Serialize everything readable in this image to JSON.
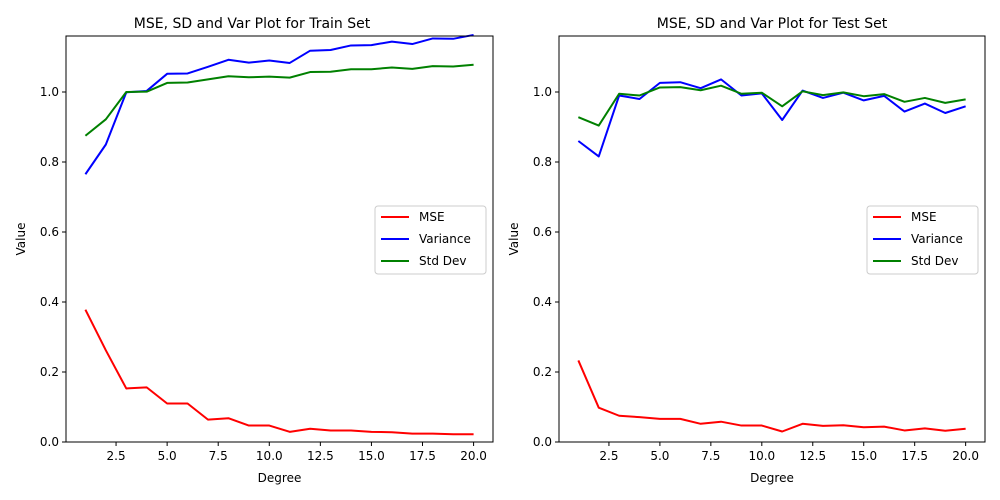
{
  "chart_data": [
    {
      "type": "line",
      "title": "MSE, SD and Var Plot for Train Set",
      "xlabel": "Degree",
      "ylabel": "Value",
      "xlim": [
        0.05,
        20.95
      ],
      "ylim": [
        0.0,
        1.16
      ],
      "xticks": [
        2.5,
        5.0,
        7.5,
        10.0,
        12.5,
        15.0,
        17.5,
        20.0
      ],
      "xtick_labels": [
        "2.5",
        "5.0",
        "7.5",
        "10.0",
        "12.5",
        "15.0",
        "17.5",
        "20.0"
      ],
      "yticks": [
        0.0,
        0.2,
        0.4,
        0.6,
        0.8,
        1.0
      ],
      "ytick_labels": [
        "0.0",
        "0.2",
        "0.4",
        "0.6",
        "0.8",
        "1.0"
      ],
      "legend_position": "center-right",
      "grid": false,
      "x": [
        1,
        2,
        3,
        4,
        5,
        6,
        7,
        8,
        9,
        10,
        11,
        12,
        13,
        14,
        15,
        16,
        17,
        18,
        19,
        20
      ],
      "series": [
        {
          "name": "MSE",
          "color": "#ff0000",
          "values": [
            0.378,
            0.262,
            0.153,
            0.156,
            0.11,
            0.11,
            0.064,
            0.068,
            0.047,
            0.047,
            0.029,
            0.038,
            0.033,
            0.033,
            0.029,
            0.028,
            0.024,
            0.024,
            0.022,
            0.022
          ]
        },
        {
          "name": "Variance",
          "color": "#0000ff",
          "values": [
            0.765,
            0.85,
            0.999,
            1.003,
            1.052,
            1.053,
            1.072,
            1.092,
            1.084,
            1.09,
            1.083,
            1.118,
            1.12,
            1.133,
            1.134,
            1.144,
            1.137,
            1.153,
            1.152,
            1.163
          ]
        },
        {
          "name": "Std Dev",
          "color": "#008000",
          "values": [
            0.875,
            0.922,
            1.0,
            1.001,
            1.026,
            1.027,
            1.036,
            1.045,
            1.042,
            1.044,
            1.041,
            1.057,
            1.058,
            1.065,
            1.065,
            1.07,
            1.066,
            1.074,
            1.073,
            1.078
          ]
        }
      ]
    },
    {
      "type": "line",
      "title": "MSE, SD and Var Plot for Test Set",
      "xlabel": "Degree",
      "ylabel": "Value",
      "xlim": [
        0.05,
        20.95
      ],
      "ylim": [
        0.0,
        1.16
      ],
      "xticks": [
        2.5,
        5.0,
        7.5,
        10.0,
        12.5,
        15.0,
        17.5,
        20.0
      ],
      "xtick_labels": [
        "2.5",
        "5.0",
        "7.5",
        "10.0",
        "12.5",
        "15.0",
        "17.5",
        "20.0"
      ],
      "yticks": [
        0.0,
        0.2,
        0.4,
        0.6,
        0.8,
        1.0
      ],
      "ytick_labels": [
        "0.0",
        "0.2",
        "0.4",
        "0.6",
        "0.8",
        "1.0"
      ],
      "legend_position": "center-right",
      "grid": false,
      "x": [
        1,
        2,
        3,
        4,
        5,
        6,
        7,
        8,
        9,
        10,
        11,
        12,
        13,
        14,
        15,
        16,
        17,
        18,
        19,
        20
      ],
      "series": [
        {
          "name": "MSE",
          "color": "#ff0000",
          "values": [
            0.233,
            0.098,
            0.075,
            0.071,
            0.066,
            0.066,
            0.052,
            0.058,
            0.047,
            0.047,
            0.03,
            0.052,
            0.046,
            0.048,
            0.042,
            0.044,
            0.033,
            0.039,
            0.032,
            0.038
          ]
        },
        {
          "name": "Variance",
          "color": "#0000ff",
          "values": [
            0.86,
            0.816,
            0.99,
            0.98,
            1.026,
            1.028,
            1.011,
            1.036,
            0.99,
            0.996,
            0.92,
            1.004,
            0.983,
            0.998,
            0.976,
            0.989,
            0.944,
            0.967,
            0.94,
            0.959
          ]
        },
        {
          "name": "Std Dev",
          "color": "#008000",
          "values": [
            0.928,
            0.904,
            0.995,
            0.99,
            1.013,
            1.014,
            1.005,
            1.018,
            0.995,
            0.998,
            0.959,
            1.002,
            0.991,
            0.999,
            0.988,
            0.994,
            0.972,
            0.983,
            0.969,
            0.979
          ]
        }
      ]
    }
  ]
}
